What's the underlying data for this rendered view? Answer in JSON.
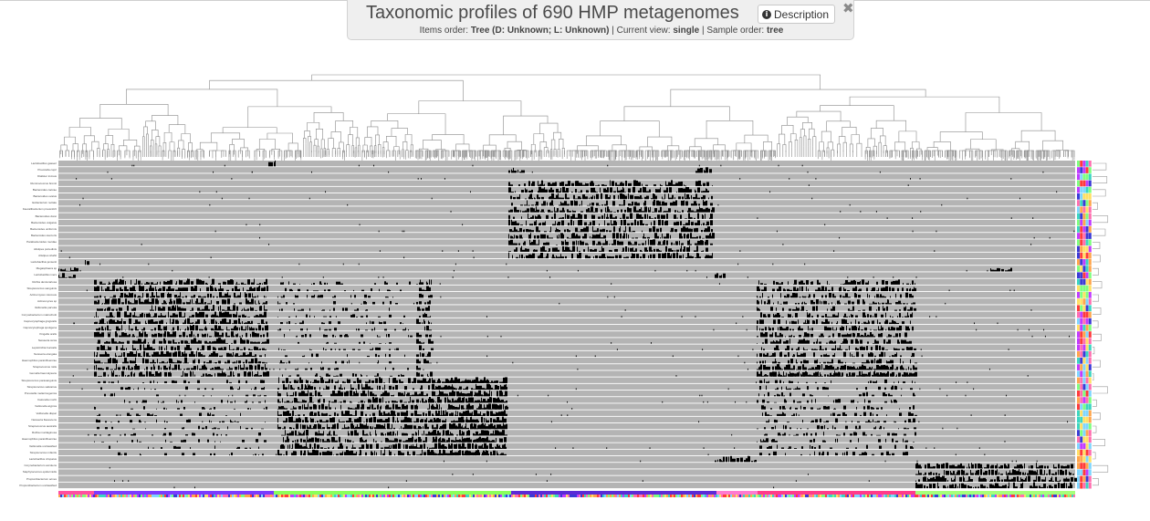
{
  "header": {
    "title": "Taxonomic profiles of 690 HMP metagenomes",
    "description_label": "Description",
    "items_order_label": "Items order:",
    "items_order_value": "Tree (D: Unknown; L: Unknown)",
    "current_view_label": "Current view:",
    "current_view_value": "single",
    "sample_order_label": "Sample order:",
    "sample_order_value": "tree"
  },
  "icons": {
    "info": "info-circle-icon",
    "close": "close-x-icon"
  },
  "colors": {
    "panel_bg": "#efefef",
    "track_bg": "#b4b4b4",
    "bars": "#000000",
    "dendrogram": "#8a8a8a"
  },
  "rows": [
    "Lactobacillus gasseri",
    "Prevotella copri",
    "Dialister invisus",
    "Ruminococcus bromii",
    "Bacteroides caccae",
    "Bacteroides ovatus",
    "Eubacterium rectale",
    "Faecalibacterium prausnitzii",
    "Bacteroides dorei",
    "Bacteroides vulgatus",
    "Bacteroides uniformis",
    "Bacteroides stercoris",
    "Parabacteroides merdae",
    "Alistipes putredinis",
    "Alistipes shahii",
    "Lactobacillus jensenii",
    "Megasphaera sp",
    "Lactobacillus iners",
    "Rothia dentocariosa",
    "Streptococcus sanguinis",
    "Actinomyces viscosus",
    "Actinomyces sp",
    "Veillonella parvula",
    "Corynebacterium matruchotii",
    "Capnocytophaga gingivalis",
    "Capnocytophaga sputigena",
    "Kingella oralis",
    "Neisseria sicca",
    "Leptotrichia buccalis",
    "Neisseria elongata",
    "Haemophilus parainfluenzae",
    "Streptococcus mitis",
    "Gemella haemolysans",
    "Streptococcus parasanguinis",
    "Streptococcus salivarius",
    "Prevotella melaninogenica",
    "Catonella morbi",
    "Veillonella atypica",
    "Veillonella dispar",
    "Neisseria flavescens",
    "Streptococcus australis",
    "Rothia mucilaginosa",
    "Haemophilus parainfluenzae",
    "Veillonella unclassified",
    "Streptococcus infantis",
    "Lactobacillus crispatus",
    "Corynebacterium accolens",
    "Staphylococcus epidermidis",
    "Propionibacterium acnes",
    "Propionibacterium unclassified"
  ]
}
